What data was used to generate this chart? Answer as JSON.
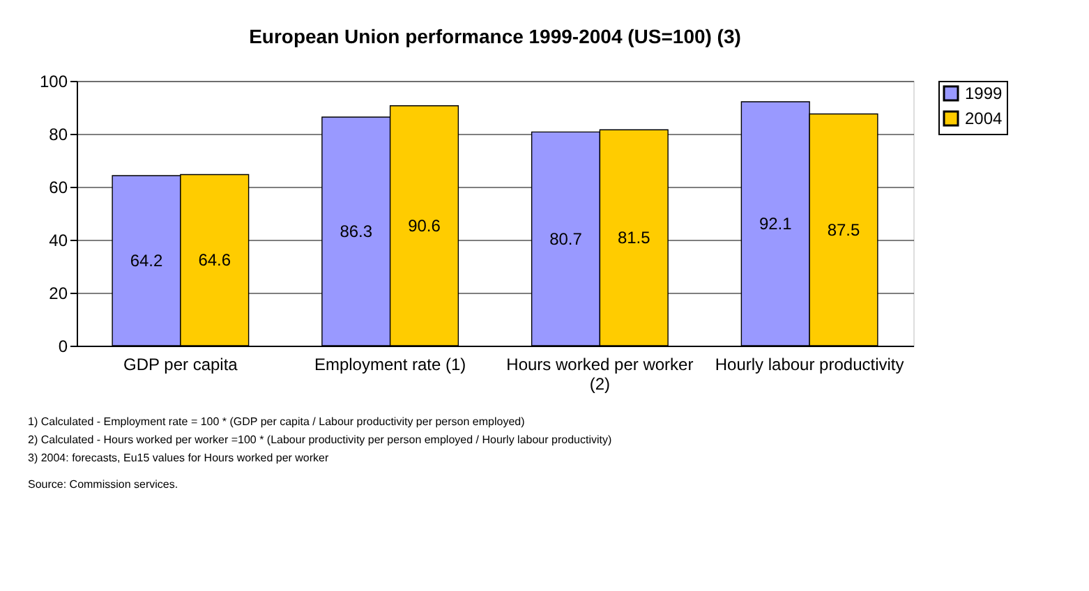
{
  "chart_data": {
    "type": "bar",
    "title": "European Union performance 1999-2004 (US=100) (3)",
    "categories": [
      "GDP per capita",
      "Employment rate (1)",
      "Hours worked per worker (2)",
      "Hourly labour productivity"
    ],
    "series": [
      {
        "name": "1999",
        "color": "#9999ff",
        "values": [
          64.2,
          86.3,
          80.7,
          92.1
        ]
      },
      {
        "name": "2004",
        "color": "#ffcc00",
        "values": [
          64.6,
          90.6,
          81.5,
          87.5
        ]
      }
    ],
    "ylim": [
      0,
      100
    ],
    "yticks": [
      0,
      20,
      40,
      60,
      80,
      100
    ],
    "grid": "y",
    "legend": "right",
    "data_labels": true,
    "annotations": [
      "1) Calculated - Employment rate = 100 * (GDP per capita / Labour productivity per person employed)",
      "2) Calculated - Hours worked per worker =100 * (Labour productivity per person employed / Hourly labour productivity)",
      "3) 2004: forecasts, Eu15 values for Hours worked per worker",
      "Source:  Commission services."
    ]
  }
}
